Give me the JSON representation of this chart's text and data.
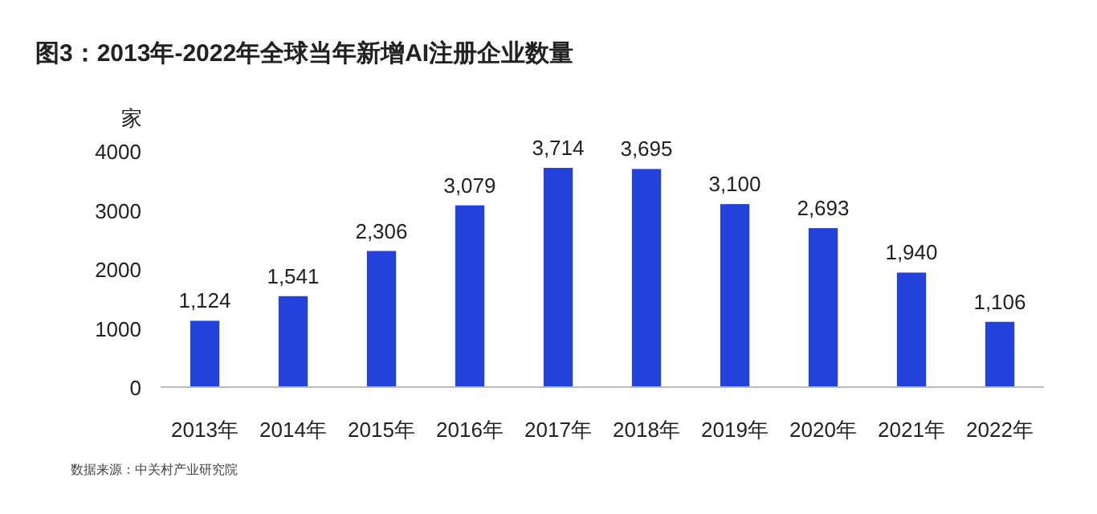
{
  "chart_data": {
    "type": "bar",
    "title": "图3：2013年-2022年全球当年新增AI注册企业数量",
    "ylabel": "家",
    "categories": [
      "2013年",
      "2014年",
      "2015年",
      "2016年",
      "2017年",
      "2018年",
      "2019年",
      "2020年",
      "2021年",
      "2022年"
    ],
    "values": [
      1124,
      1541,
      2306,
      3079,
      3714,
      3695,
      3100,
      2693,
      1940,
      1106
    ],
    "value_labels": [
      "1,124",
      "1,541",
      "2,306",
      "3,079",
      "3,714",
      "3,695",
      "3,100",
      "2,693",
      "1,940",
      "1,106"
    ],
    "color": "#2342db",
    "ylim": [
      0,
      4000
    ],
    "yticks": [
      0,
      1000,
      2000,
      3000,
      4000
    ],
    "grid": false,
    "annotations": [
      "数据来源：中关村产业研究院"
    ]
  }
}
